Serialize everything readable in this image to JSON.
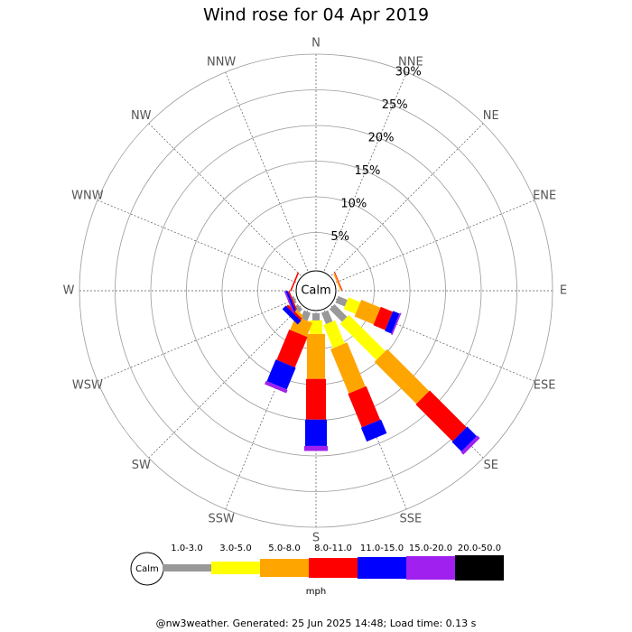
{
  "chart_data": {
    "type": "windrose",
    "title": "Wind rose for 04 Apr 2019",
    "categories": [
      "N",
      "NNE",
      "NE",
      "ENE",
      "E",
      "ESE",
      "SE",
      "SSE",
      "S",
      "SSW",
      "SW",
      "WSW",
      "W",
      "WNW",
      "NW",
      "NNW"
    ],
    "calm_label": "Calm",
    "legend_unit": "mph",
    "footer": "@nw3weather. Generated: 25 Jun 2025 14:48; Load time: 0.13 s",
    "ylim": [
      0,
      30
    ],
    "yticks": [
      {
        "value": 5,
        "label": "5%"
      },
      {
        "value": 10,
        "label": "10%"
      },
      {
        "value": 15,
        "label": "15%"
      },
      {
        "value": 20,
        "label": "20%"
      },
      {
        "value": 25,
        "label": "25%"
      },
      {
        "value": 30,
        "label": "30%"
      }
    ],
    "series": [
      {
        "name": "1.0-3.0",
        "color": "#999999",
        "values": [
          0,
          0,
          0,
          0,
          0,
          1.4,
          2.5,
          1.7,
          1.0,
          1.2,
          0.6,
          0.3,
          0,
          0,
          0,
          0
        ]
      },
      {
        "name": "3.0-5.0",
        "color": "#ffff00",
        "values": [
          0,
          0,
          0,
          0,
          0,
          1.8,
          7.2,
          3.5,
          1.9,
          0,
          0,
          0,
          0,
          0,
          0,
          0
        ]
      },
      {
        "name": "5.0-8.0",
        "color": "#ffa500",
        "values": [
          0,
          0,
          0,
          0.2,
          0,
          2.9,
          8.3,
          6.7,
          6.3,
          2.1,
          0.4,
          0,
          0,
          0,
          0,
          0
        ]
      },
      {
        "name": "8.0-11.0",
        "color": "#ff0000",
        "values": [
          0,
          0,
          0,
          0.1,
          0,
          1.8,
          7.3,
          5.1,
          5.7,
          4.6,
          0.3,
          0.2,
          0,
          0.2,
          0,
          0
        ]
      },
      {
        "name": "11.0-15.0",
        "color": "#0000ff",
        "values": [
          0,
          0,
          0,
          0,
          0,
          1.0,
          1.9,
          2.1,
          3.7,
          3.3,
          0.7,
          0.3,
          0,
          0,
          0,
          0
        ]
      },
      {
        "name": "15.0-20.0",
        "color": "#a020f0",
        "values": [
          0,
          0,
          0,
          0,
          0,
          0.2,
          0.5,
          0,
          0.7,
          0.5,
          0,
          0.2,
          0,
          0,
          0,
          0
        ]
      },
      {
        "name": "20.0-50.0",
        "color": "#000000",
        "values": [
          0,
          0,
          0,
          0,
          0,
          0,
          0,
          0,
          0,
          0,
          0,
          0,
          0,
          0,
          0,
          0
        ]
      }
    ]
  }
}
